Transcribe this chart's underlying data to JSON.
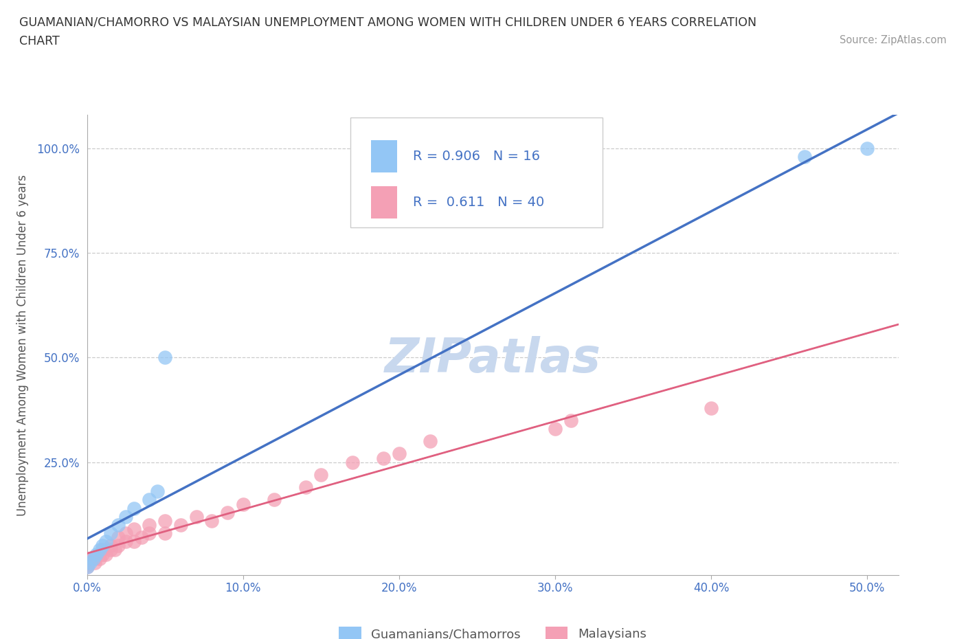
{
  "title_line1": "GUAMANIAN/CHAMORRO VS MALAYSIAN UNEMPLOYMENT AMONG WOMEN WITH CHILDREN UNDER 6 YEARS CORRELATION",
  "title_line2": "CHART",
  "source_text": "Source: ZipAtlas.com",
  "ylabel": "Unemployment Among Women with Children Under 6 years",
  "xlim": [
    0.0,
    0.52
  ],
  "ylim": [
    -0.02,
    1.08
  ],
  "xtick_labels": [
    "0.0%",
    "10.0%",
    "20.0%",
    "30.0%",
    "40.0%",
    "50.0%"
  ],
  "xtick_vals": [
    0.0,
    0.1,
    0.2,
    0.3,
    0.4,
    0.5
  ],
  "ytick_labels": [
    "25.0%",
    "50.0%",
    "75.0%",
    "100.0%"
  ],
  "ytick_vals": [
    0.25,
    0.5,
    0.75,
    1.0
  ],
  "guamanian_color": "#93C6F5",
  "malaysian_color": "#F4A0B5",
  "trend_guamanian_color": "#4472C4",
  "trend_malaysian_color": "#E06080",
  "trend_malaysian_dash_color": "#EAA0B8",
  "watermark_color": "#C8D8EE",
  "r_guamanian": 0.906,
  "n_guamanian": 16,
  "r_malaysian": 0.611,
  "n_malaysian": 40,
  "guamanian_x": [
    0.0,
    0.002,
    0.004,
    0.006,
    0.008,
    0.01,
    0.012,
    0.015,
    0.02,
    0.025,
    0.03,
    0.04,
    0.045,
    0.05,
    0.46,
    0.5
  ],
  "guamanian_y": [
    0.0,
    0.01,
    0.02,
    0.03,
    0.04,
    0.05,
    0.06,
    0.08,
    0.1,
    0.12,
    0.14,
    0.16,
    0.18,
    0.5,
    0.98,
    1.0
  ],
  "malaysian_x": [
    0.0,
    0.0,
    0.0,
    0.0,
    0.0,
    0.005,
    0.005,
    0.008,
    0.01,
    0.01,
    0.012,
    0.015,
    0.015,
    0.018,
    0.02,
    0.02,
    0.025,
    0.025,
    0.03,
    0.03,
    0.035,
    0.04,
    0.04,
    0.05,
    0.05,
    0.06,
    0.07,
    0.08,
    0.09,
    0.1,
    0.12,
    0.14,
    0.15,
    0.17,
    0.19,
    0.2,
    0.22,
    0.3,
    0.31,
    0.4
  ],
  "malaysian_y": [
    0.0,
    0.005,
    0.01,
    0.015,
    0.02,
    0.01,
    0.02,
    0.02,
    0.03,
    0.04,
    0.03,
    0.04,
    0.05,
    0.04,
    0.05,
    0.07,
    0.06,
    0.08,
    0.06,
    0.09,
    0.07,
    0.08,
    0.1,
    0.08,
    0.11,
    0.1,
    0.12,
    0.11,
    0.13,
    0.15,
    0.16,
    0.19,
    0.22,
    0.25,
    0.26,
    0.27,
    0.3,
    0.33,
    0.35,
    0.38
  ],
  "legend_label_guamanian": "Guamanians/Chamorros",
  "legend_label_malaysian": "Malaysians",
  "background_color": "#FFFFFF",
  "grid_color": "#CCCCCC",
  "tick_color": "#4472C4",
  "label_color": "#555555"
}
